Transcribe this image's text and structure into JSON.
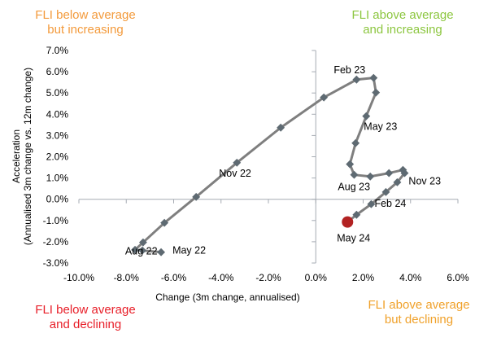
{
  "quadrants": {
    "top_left": {
      "line1": "FLI below average",
      "line2": "but increasing",
      "color": "#F39A3B"
    },
    "top_right": {
      "line1": "FLI above average",
      "line2": "and increasing",
      "color": "#8CC63F"
    },
    "bottom_left": {
      "line1": "FLI below average",
      "line2": "and declining",
      "color": "#E8202A"
    },
    "bottom_right": {
      "line1": "FLI above average",
      "line2": "but declining",
      "color": "#F0A12A"
    }
  },
  "chart_data": {
    "type": "line",
    "xlabel": "Change (3m change, annualised)",
    "ylabel_line1": "Acceleration",
    "ylabel_line2": "(Annualised 3m change vs. 12m change)",
    "xlim": [
      -10,
      6
    ],
    "ylim": [
      -3,
      7
    ],
    "x_ticks": [
      "-10.0%",
      "-8.0%",
      "-6.0%",
      "-4.0%",
      "-2.0%",
      "0.0%",
      "2.0%",
      "4.0%",
      "6.0%"
    ],
    "y_ticks": [
      "-3.0%",
      "-2.0%",
      "-1.0%",
      "0.0%",
      "1.0%",
      "2.0%",
      "3.0%",
      "4.0%",
      "5.0%",
      "6.0%",
      "7.0%"
    ],
    "line_color": "#7F7F7F",
    "marker_color": "#5E6A72",
    "latest_color": "#B22222",
    "points": [
      {
        "x": -6.53,
        "y": -2.49,
        "label": "May 22"
      },
      {
        "x": -7.32,
        "y": -2.41
      },
      {
        "x": -7.63,
        "y": -2.38
      },
      {
        "x": -7.29,
        "y": -2.03,
        "label": "Aug 22"
      },
      {
        "x": -6.39,
        "y": -1.11
      },
      {
        "x": -5.05,
        "y": 0.11
      },
      {
        "x": -3.33,
        "y": 1.72,
        "label": "Nov 22"
      },
      {
        "x": -1.48,
        "y": 3.37
      },
      {
        "x": 0.34,
        "y": 4.79
      },
      {
        "x": 1.72,
        "y": 5.63,
        "label": "Feb 23"
      },
      {
        "x": 2.44,
        "y": 5.71
      },
      {
        "x": 2.54,
        "y": 5.02
      },
      {
        "x": 2.13,
        "y": 3.91,
        "label": "May 23"
      },
      {
        "x": 1.68,
        "y": 2.64
      },
      {
        "x": 1.44,
        "y": 1.65
      },
      {
        "x": 1.62,
        "y": 1.15,
        "label": "Aug 23"
      },
      {
        "x": 2.3,
        "y": 1.07
      },
      {
        "x": 3.09,
        "y": 1.23
      },
      {
        "x": 3.68,
        "y": 1.38,
        "label": "Nov 23"
      },
      {
        "x": 3.75,
        "y": 1.23
      },
      {
        "x": 3.44,
        "y": 0.8
      },
      {
        "x": 2.96,
        "y": 0.34,
        "label": "Feb 24"
      },
      {
        "x": 2.34,
        "y": -0.23
      },
      {
        "x": 1.72,
        "y": -0.73
      },
      {
        "x": 1.34,
        "y": -1.07,
        "label": "May 24"
      }
    ]
  }
}
